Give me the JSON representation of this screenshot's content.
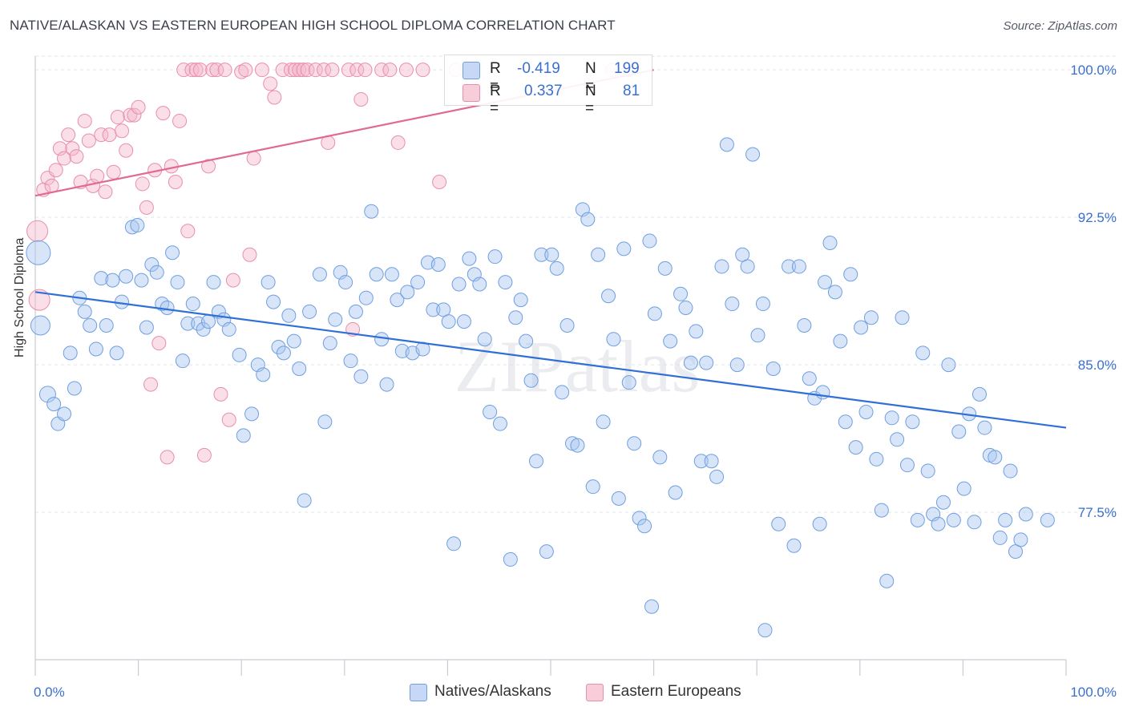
{
  "title": "NATIVE/ALASKAN VS EASTERN EUROPEAN HIGH SCHOOL DIPLOMA CORRELATION CHART",
  "source": "Source: ZipAtlas.com",
  "watermark": "ZIPatlas",
  "legend": {
    "rows": [
      {
        "r_label": "R =",
        "r_value": "-0.419",
        "n_label": "N =",
        "n_value": "199",
        "color": "#a9c5ef"
      },
      {
        "r_label": "R =",
        "r_value": "0.337",
        "n_label": "N =",
        "n_value": "81",
        "color": "#f5b8cb"
      }
    ]
  },
  "bottom_legend": [
    {
      "label": "Natives/Alaskans",
      "color": "#a9c5ef"
    },
    {
      "label": "Eastern Europeans",
      "color": "#f5b8cb"
    }
  ],
  "chart_data": {
    "type": "scatter",
    "title": "NATIVE/ALASKAN VS EASTERN EUROPEAN HIGH SCHOOL DIPLOMA CORRELATION CHART",
    "xlabel": "",
    "ylabel": "High School Diploma",
    "xlim": [
      0,
      100
    ],
    "ylim": [
      70.0,
      100.7
    ],
    "x_tick_labels": [
      "0.0%",
      "100.0%"
    ],
    "y_ticks": [
      77.5,
      85.0,
      92.5,
      100.0
    ],
    "y_tick_labels": [
      "77.5%",
      "85.0%",
      "92.5%",
      "100.0%"
    ],
    "grid": true,
    "legend_position": "top-center",
    "series": [
      {
        "name": "Natives/Alaskans",
        "color": "#6f9fe0",
        "fill": "#a9c5ef",
        "trend": {
          "x": [
            0,
            100
          ],
          "y": [
            88.7,
            81.8
          ]
        },
        "points": [
          [
            0.3,
            90.7
          ],
          [
            0.5,
            87.0
          ],
          [
            1.2,
            83.5
          ],
          [
            1.8,
            83.0
          ],
          [
            2.2,
            82.0
          ],
          [
            2.8,
            82.5
          ],
          [
            3.4,
            85.6
          ],
          [
            3.8,
            83.8
          ],
          [
            4.3,
            88.4
          ],
          [
            4.8,
            87.7
          ],
          [
            5.3,
            87.0
          ],
          [
            5.9,
            85.8
          ],
          [
            6.4,
            89.4
          ],
          [
            6.9,
            87.0
          ],
          [
            7.5,
            89.3
          ],
          [
            7.9,
            85.6
          ],
          [
            8.4,
            88.2
          ],
          [
            8.8,
            89.5
          ],
          [
            9.4,
            92.0
          ],
          [
            9.9,
            92.1
          ],
          [
            10.3,
            89.3
          ],
          [
            10.8,
            86.9
          ],
          [
            11.3,
            90.1
          ],
          [
            11.8,
            89.7
          ],
          [
            12.3,
            88.1
          ],
          [
            12.8,
            87.9
          ],
          [
            13.3,
            90.7
          ],
          [
            13.8,
            89.2
          ],
          [
            14.3,
            85.2
          ],
          [
            14.8,
            87.1
          ],
          [
            15.3,
            88.1
          ],
          [
            15.8,
            87.1
          ],
          [
            16.3,
            86.8
          ],
          [
            16.8,
            87.2
          ],
          [
            17.3,
            89.2
          ],
          [
            17.8,
            87.7
          ],
          [
            18.3,
            87.3
          ],
          [
            18.8,
            86.8
          ],
          [
            19.8,
            85.5
          ],
          [
            20.2,
            81.4
          ],
          [
            21.0,
            82.5
          ],
          [
            21.6,
            85.0
          ],
          [
            22.1,
            84.5
          ],
          [
            22.6,
            89.2
          ],
          [
            23.1,
            88.2
          ],
          [
            23.6,
            85.9
          ],
          [
            24.1,
            85.6
          ],
          [
            24.6,
            87.5
          ],
          [
            25.1,
            86.2
          ],
          [
            25.6,
            84.8
          ],
          [
            26.1,
            78.1
          ],
          [
            26.6,
            87.7
          ],
          [
            27.6,
            89.6
          ],
          [
            28.1,
            82.1
          ],
          [
            28.6,
            86.1
          ],
          [
            29.1,
            87.3
          ],
          [
            29.6,
            89.7
          ],
          [
            30.1,
            89.2
          ],
          [
            30.6,
            85.2
          ],
          [
            31.1,
            87.7
          ],
          [
            31.6,
            84.4
          ],
          [
            32.1,
            88.4
          ],
          [
            32.6,
            92.8
          ],
          [
            33.1,
            89.6
          ],
          [
            33.6,
            86.3
          ],
          [
            34.1,
            84.0
          ],
          [
            34.6,
            89.6
          ],
          [
            35.1,
            88.3
          ],
          [
            35.6,
            85.7
          ],
          [
            36.1,
            88.7
          ],
          [
            36.6,
            85.6
          ],
          [
            37.1,
            89.2
          ],
          [
            37.6,
            85.8
          ],
          [
            38.1,
            90.2
          ],
          [
            38.6,
            87.8
          ],
          [
            39.1,
            90.1
          ],
          [
            39.6,
            87.8
          ],
          [
            40.1,
            87.2
          ],
          [
            40.6,
            75.9
          ],
          [
            41.1,
            89.1
          ],
          [
            41.6,
            87.2
          ],
          [
            42.1,
            90.4
          ],
          [
            42.6,
            89.6
          ],
          [
            43.1,
            89.1
          ],
          [
            43.6,
            86.3
          ],
          [
            44.1,
            82.6
          ],
          [
            44.6,
            90.5
          ],
          [
            45.1,
            82.0
          ],
          [
            45.6,
            89.2
          ],
          [
            46.1,
            75.1
          ],
          [
            46.6,
            87.4
          ],
          [
            47.1,
            88.3
          ],
          [
            47.6,
            86.2
          ],
          [
            48.1,
            84.2
          ],
          [
            48.6,
            80.1
          ],
          [
            49.1,
            90.6
          ],
          [
            49.6,
            75.5
          ],
          [
            50.1,
            90.6
          ],
          [
            50.6,
            89.9
          ],
          [
            51.1,
            83.6
          ],
          [
            51.6,
            87.0
          ],
          [
            52.1,
            81.0
          ],
          [
            52.6,
            80.9
          ],
          [
            53.1,
            92.9
          ],
          [
            53.6,
            92.4
          ],
          [
            54.1,
            78.8
          ],
          [
            54.6,
            90.6
          ],
          [
            55.1,
            82.1
          ],
          [
            55.6,
            88.5
          ],
          [
            56.1,
            86.3
          ],
          [
            56.6,
            78.2
          ],
          [
            57.1,
            90.9
          ],
          [
            57.6,
            84.1
          ],
          [
            58.1,
            81.0
          ],
          [
            58.6,
            77.2
          ],
          [
            59.1,
            76.8
          ],
          [
            59.6,
            91.3
          ],
          [
            60.1,
            87.6
          ],
          [
            60.6,
            80.3
          ],
          [
            61.1,
            89.9
          ],
          [
            61.6,
            86.2
          ],
          [
            62.1,
            78.5
          ],
          [
            62.6,
            88.6
          ],
          [
            63.1,
            87.9
          ],
          [
            63.6,
            85.1
          ],
          [
            64.1,
            86.7
          ],
          [
            64.6,
            80.1
          ],
          [
            65.1,
            85.1
          ],
          [
            65.6,
            80.1
          ],
          [
            66.1,
            79.3
          ],
          [
            66.6,
            90.0
          ],
          [
            67.1,
            96.2
          ],
          [
            67.6,
            88.1
          ],
          [
            68.1,
            85.0
          ],
          [
            68.6,
            90.6
          ],
          [
            69.1,
            90.0
          ],
          [
            69.6,
            95.7
          ],
          [
            70.1,
            86.5
          ],
          [
            70.6,
            88.1
          ],
          [
            71.6,
            84.8
          ],
          [
            72.1,
            76.9
          ],
          [
            73.1,
            90.0
          ],
          [
            73.6,
            75.8
          ],
          [
            74.1,
            90.0
          ],
          [
            74.6,
            87.0
          ],
          [
            75.1,
            84.3
          ],
          [
            75.6,
            83.3
          ],
          [
            76.1,
            76.9
          ],
          [
            76.6,
            89.2
          ],
          [
            77.1,
            91.2
          ],
          [
            77.6,
            88.7
          ],
          [
            78.1,
            86.2
          ],
          [
            78.6,
            82.1
          ],
          [
            79.1,
            89.6
          ],
          [
            79.6,
            80.8
          ],
          [
            80.1,
            86.9
          ],
          [
            80.6,
            82.6
          ],
          [
            81.1,
            87.4
          ],
          [
            81.6,
            80.2
          ],
          [
            82.1,
            77.6
          ],
          [
            82.6,
            74.0
          ],
          [
            83.1,
            82.3
          ],
          [
            83.6,
            81.2
          ],
          [
            84.1,
            87.4
          ],
          [
            84.6,
            79.9
          ],
          [
            85.1,
            82.1
          ],
          [
            85.6,
            77.1
          ],
          [
            86.1,
            85.6
          ],
          [
            86.6,
            79.6
          ],
          [
            87.1,
            77.4
          ],
          [
            87.6,
            76.9
          ],
          [
            88.1,
            78.0
          ],
          [
            88.6,
            85.0
          ],
          [
            89.1,
            77.1
          ],
          [
            89.6,
            81.6
          ],
          [
            90.1,
            78.7
          ],
          [
            90.6,
            82.5
          ],
          [
            91.1,
            77.0
          ],
          [
            91.6,
            83.5
          ],
          [
            92.1,
            81.8
          ],
          [
            92.6,
            80.4
          ],
          [
            93.1,
            80.3
          ],
          [
            93.6,
            76.2
          ],
          [
            94.1,
            77.1
          ],
          [
            94.6,
            79.6
          ],
          [
            95.1,
            75.5
          ],
          [
            95.6,
            76.1
          ],
          [
            96.1,
            77.4
          ],
          [
            70.8,
            71.5
          ],
          [
            59.8,
            72.7
          ],
          [
            98.2,
            77.1
          ],
          [
            76.4,
            83.6
          ]
        ]
      },
      {
        "name": "Eastern Europeans",
        "color": "#e88fab",
        "fill": "#f5b8cb",
        "trend": {
          "x": [
            0,
            60
          ],
          "y": [
            93.6,
            100.0
          ]
        },
        "points": [
          [
            0.2,
            91.8
          ],
          [
            0.4,
            88.3
          ],
          [
            0.8,
            93.9
          ],
          [
            1.2,
            94.5
          ],
          [
            1.6,
            94.1
          ],
          [
            2.0,
            94.9
          ],
          [
            2.4,
            96.0
          ],
          [
            2.8,
            95.5
          ],
          [
            3.2,
            96.7
          ],
          [
            3.6,
            96.0
          ],
          [
            4.0,
            95.6
          ],
          [
            4.4,
            94.3
          ],
          [
            4.8,
            97.4
          ],
          [
            5.2,
            96.4
          ],
          [
            5.6,
            94.1
          ],
          [
            6.0,
            94.6
          ],
          [
            6.4,
            96.7
          ],
          [
            6.8,
            93.8
          ],
          [
            7.2,
            96.7
          ],
          [
            7.6,
            94.8
          ],
          [
            8.0,
            97.6
          ],
          [
            8.4,
            96.9
          ],
          [
            8.8,
            95.9
          ],
          [
            9.2,
            97.7
          ],
          [
            9.6,
            97.7
          ],
          [
            10.0,
            98.1
          ],
          [
            10.4,
            94.2
          ],
          [
            10.8,
            93.0
          ],
          [
            11.2,
            84.0
          ],
          [
            11.6,
            94.9
          ],
          [
            12.0,
            86.1
          ],
          [
            12.4,
            97.8
          ],
          [
            12.8,
            80.3
          ],
          [
            13.2,
            95.1
          ],
          [
            13.6,
            94.3
          ],
          [
            14.0,
            97.4
          ],
          [
            14.4,
            100.0
          ],
          [
            14.8,
            91.8
          ],
          [
            15.2,
            100.0
          ],
          [
            15.6,
            100.0
          ],
          [
            16.0,
            100.0
          ],
          [
            16.4,
            80.4
          ],
          [
            16.8,
            95.1
          ],
          [
            17.2,
            100.0
          ],
          [
            17.6,
            100.0
          ],
          [
            18.0,
            83.5
          ],
          [
            18.4,
            100.0
          ],
          [
            18.8,
            82.2
          ],
          [
            19.2,
            89.3
          ],
          [
            20.0,
            99.9
          ],
          [
            20.4,
            100.0
          ],
          [
            20.8,
            90.6
          ],
          [
            21.2,
            95.5
          ],
          [
            22.0,
            100.0
          ],
          [
            22.8,
            99.3
          ],
          [
            23.2,
            98.6
          ],
          [
            24.0,
            100.0
          ],
          [
            24.8,
            100.0
          ],
          [
            25.2,
            100.0
          ],
          [
            25.6,
            100.0
          ],
          [
            26.0,
            100.0
          ],
          [
            26.4,
            100.0
          ],
          [
            27.2,
            100.0
          ],
          [
            28.0,
            100.0
          ],
          [
            28.4,
            96.3
          ],
          [
            28.8,
            100.0
          ],
          [
            30.4,
            100.0
          ],
          [
            30.8,
            86.8
          ],
          [
            31.2,
            100.0
          ],
          [
            31.6,
            98.5
          ],
          [
            32.0,
            100.0
          ],
          [
            33.6,
            100.0
          ],
          [
            34.4,
            100.0
          ],
          [
            35.2,
            96.3
          ],
          [
            36.0,
            100.0
          ],
          [
            37.6,
            100.0
          ],
          [
            39.2,
            94.3
          ],
          [
            40.8,
            100.0
          ],
          [
            42.4,
            100.0
          ],
          [
            56.0,
            100.0
          ],
          [
            57.6,
            100.0
          ]
        ]
      }
    ]
  }
}
